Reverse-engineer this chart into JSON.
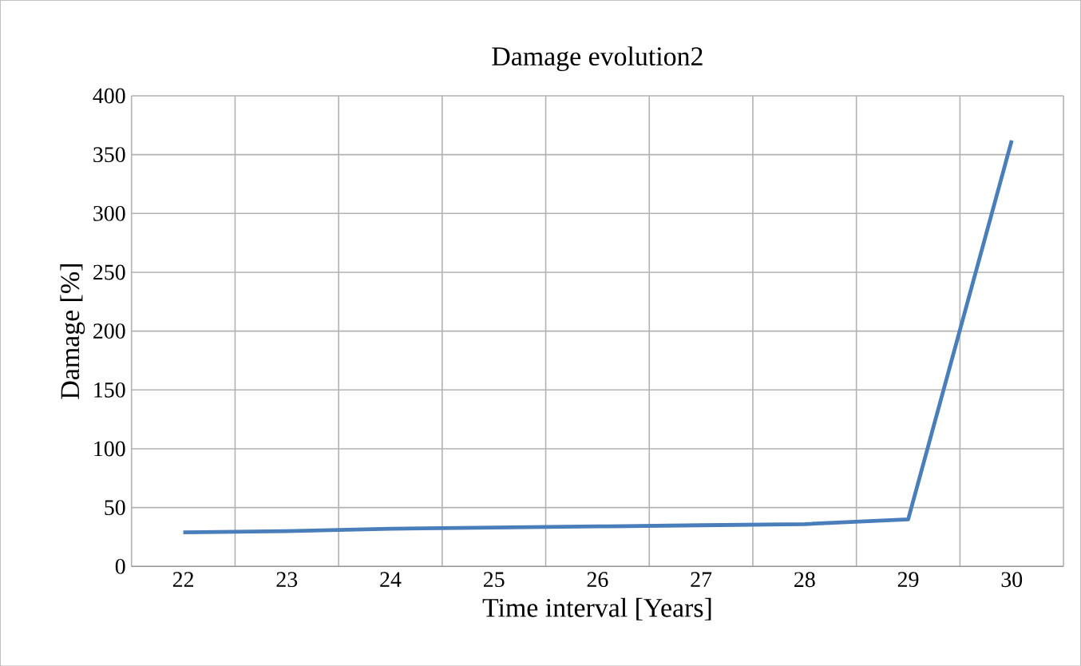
{
  "chart_data": {
    "type": "line",
    "title": "Damage evolution2",
    "xlabel": "Time interval [Years]",
    "ylabel": "Damage [%]",
    "categories": [
      "22",
      "23",
      "24",
      "25",
      "26",
      "27",
      "28",
      "29",
      "30"
    ],
    "series": [
      {
        "color": "#4a7ebb",
        "values": [
          29,
          30,
          32,
          33,
          34,
          35,
          36,
          40,
          362
        ]
      }
    ],
    "ylim": [
      0,
      400
    ],
    "yticks": [
      0,
      50,
      100,
      150,
      200,
      250,
      300,
      350,
      400
    ],
    "grid": true,
    "marker": "none",
    "line_style": "solid"
  }
}
